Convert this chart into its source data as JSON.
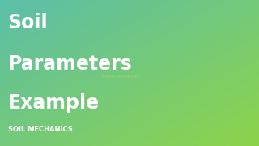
{
  "title_lines": [
    "Soil",
    "Parameters",
    "Example"
  ],
  "subtitle": "SOIL MECHANICS",
  "gradient_colors_lr": [
    "#5bbfaa",
    "#8dd44a"
  ],
  "gradient_colors_tb": [
    "#6dc85a",
    "#5ab8a8"
  ],
  "title_color": "#ffffff",
  "subtitle_color": "#ffffff",
  "title_fontsize": 17,
  "subtitle_fontsize": 6,
  "watermark_text": "· short term/sal",
  "watermark_color": "#a8d870",
  "watermark_fontsize": 4.5,
  "fig_width": 3.2,
  "fig_height": 1.8,
  "dpi": 100
}
